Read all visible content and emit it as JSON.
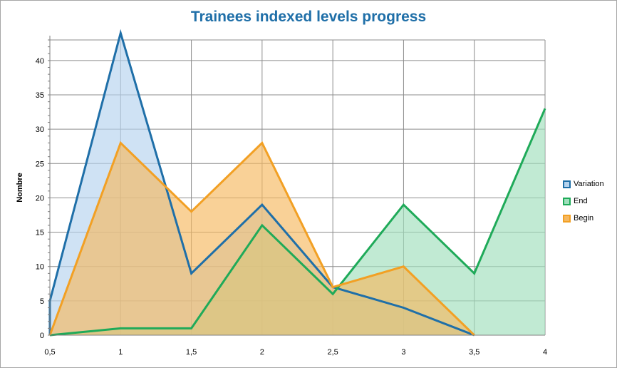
{
  "chart_data": {
    "type": "area",
    "title": "Trainees indexed levels progress",
    "xlabel": "",
    "ylabel": "Nombre",
    "x": [
      0.5,
      1,
      1.5,
      2,
      2.5,
      3,
      3.5,
      4
    ],
    "x_tick_labels": [
      "0,5",
      "1",
      "1,5",
      "2",
      "2,5",
      "3",
      "3,5",
      "4"
    ],
    "y_ticks": [
      0,
      5,
      10,
      15,
      20,
      25,
      30,
      35,
      40
    ],
    "ylim": [
      0,
      43
    ],
    "grid": true,
    "legend_position": "right",
    "series": [
      {
        "name": "Variation",
        "x": [
          0.5,
          0.5,
          1,
          1.5,
          2,
          2.5,
          3,
          3.5
        ],
        "values": [
          0,
          5,
          44,
          9,
          19,
          7,
          4,
          0
        ],
        "color": "#1f6fa8",
        "fill": "#b5d3ee"
      },
      {
        "name": "End",
        "x": [
          0.5,
          1,
          1.5,
          2,
          2.5,
          3,
          3.5,
          4
        ],
        "values": [
          0,
          1,
          1,
          16,
          6,
          19,
          9,
          33
        ],
        "color": "#1faa59",
        "fill": "#9fdfbc"
      },
      {
        "name": "Begin",
        "x": [
          0.5,
          1,
          1.5,
          2,
          2.5,
          3,
          3.5
        ],
        "values": [
          0,
          28,
          18,
          28,
          7,
          10,
          0
        ],
        "color": "#f2a024",
        "fill": "#f6b860"
      }
    ]
  },
  "legend": [
    {
      "label": "Variation",
      "color": "#1f6fa8",
      "fill": "#b5d3ee"
    },
    {
      "label": "End",
      "color": "#1faa59",
      "fill": "#9fdfbc"
    },
    {
      "label": "Begin",
      "color": "#f2a024",
      "fill": "#f6b860"
    }
  ]
}
